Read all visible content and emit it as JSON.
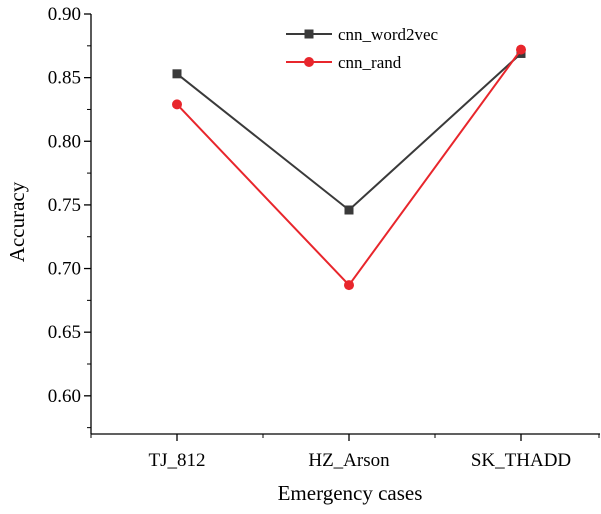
{
  "chart_data": {
    "type": "line",
    "title": "",
    "xlabel": "Emergency cases",
    "ylabel": "Accuracy",
    "categories": [
      "TJ_812",
      "HZ_Arson",
      "SK_THADD"
    ],
    "ylim": [
      0.57,
      0.9
    ],
    "yticks": [
      0.6,
      0.65,
      0.7,
      0.75,
      0.8,
      0.85,
      0.9
    ],
    "ytick_labels": [
      "0.60",
      "0.65",
      "0.70",
      "0.75",
      "0.80",
      "0.85",
      "0.90"
    ],
    "grid": false,
    "legend_position": "top-center",
    "series": [
      {
        "name": "cnn_word2vec",
        "values": [
          0.853,
          0.746,
          0.869
        ],
        "color": "#3a3a3a",
        "marker": "square"
      },
      {
        "name": "cnn_rand",
        "values": [
          0.829,
          0.687,
          0.872
        ],
        "color": "#e8262c",
        "marker": "circle"
      }
    ]
  }
}
